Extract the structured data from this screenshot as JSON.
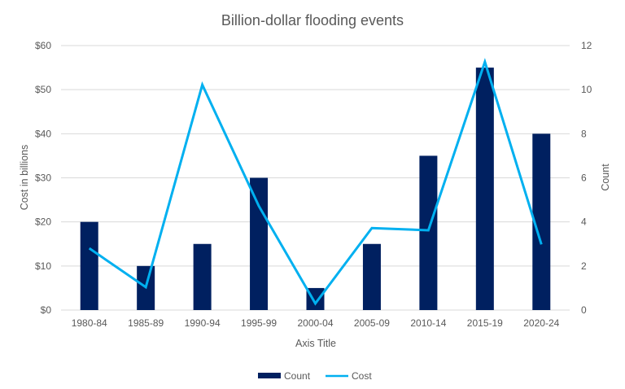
{
  "chart_data": {
    "type": "bar+line",
    "title": "Billion-dollar flooding events",
    "xlabel": "Axis Title",
    "ylabel_left": "Cost in billions",
    "ylabel_right": "Count",
    "categories": [
      "1980-84",
      "1985-89",
      "1990-94",
      "1995-99",
      "2000-04",
      "2005-09",
      "2010-14",
      "2015-19",
      "2020-24"
    ],
    "series": [
      {
        "name": "Count",
        "type": "bar",
        "axis": "right",
        "color": "#002060",
        "values": [
          4,
          2,
          3,
          6,
          1,
          3,
          7,
          11,
          8
        ]
      },
      {
        "name": "Cost",
        "type": "line",
        "axis": "left",
        "color": "#00B0F0",
        "values": [
          14.0,
          5.2,
          51.1,
          23.6,
          1.5,
          18.6,
          18.1,
          56.3,
          14.9
        ]
      }
    ],
    "ylim_left": [
      0,
      60
    ],
    "ylim_right": [
      0,
      12
    ],
    "left_ticks": [
      "$0",
      "$10",
      "$20",
      "$30",
      "$40",
      "$50",
      "$60"
    ],
    "right_ticks": [
      "0",
      "2",
      "4",
      "6",
      "8",
      "10",
      "12"
    ],
    "grid": true,
    "legend_position": "bottom"
  }
}
